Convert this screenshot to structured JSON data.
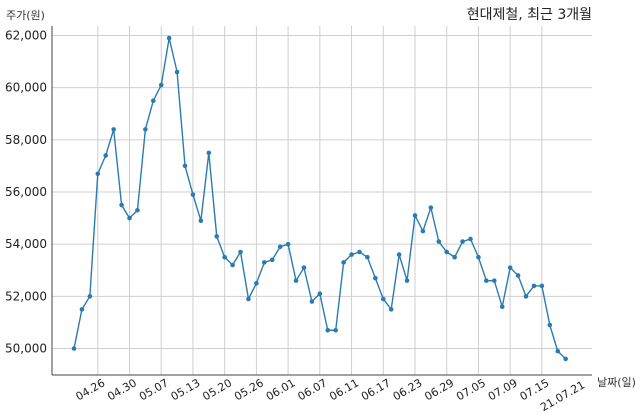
{
  "chart_data": {
    "type": "line",
    "title": "현대제철, 최근 3개월",
    "ylabel": "주가(원)",
    "xlabel": "날짜(일)",
    "ylim": [
      49000,
      62400
    ],
    "yticks": [
      50000,
      52000,
      54000,
      56000,
      58000,
      60000,
      62000
    ],
    "ytick_labels": [
      "50,000",
      "52,000",
      "54,000",
      "56,000",
      "58,000",
      "60,000",
      "62,000"
    ],
    "xtick_index": [
      3,
      7,
      11,
      15,
      19,
      23,
      27,
      31,
      35,
      39,
      43,
      47,
      51,
      55,
      59
    ],
    "xtick_labels": [
      "04.26",
      "04.30",
      "05.07",
      "05.13",
      "05.20",
      "05.26",
      "06.01",
      "06.07",
      "06.11",
      "06.17",
      "06.23",
      "06.29",
      "07.05",
      "07.09",
      "07.15"
    ],
    "last_label": "21.07.21",
    "grid": true,
    "line_color": "#2b7bb0",
    "series": [
      {
        "values": [
          50000,
          51500,
          52000,
          56700,
          57400,
          58400,
          55500,
          55000,
          55300,
          58400,
          59500,
          60100,
          61900,
          60600,
          57000,
          55900,
          54900,
          57500,
          54300,
          53500,
          53200,
          53700,
          51900,
          52500,
          53300,
          53400,
          53900,
          54000,
          52600,
          53100,
          51800,
          52100,
          50700,
          50700,
          53300,
          53600,
          53700,
          53500,
          52700,
          51900,
          51500,
          53600,
          52600,
          55100,
          54500,
          55400,
          54100,
          53700,
          53500,
          54100,
          54200,
          53500,
          52600,
          52600,
          51600,
          53100,
          52800,
          52000,
          52400,
          52400,
          50900,
          49900,
          49600
        ]
      }
    ]
  }
}
